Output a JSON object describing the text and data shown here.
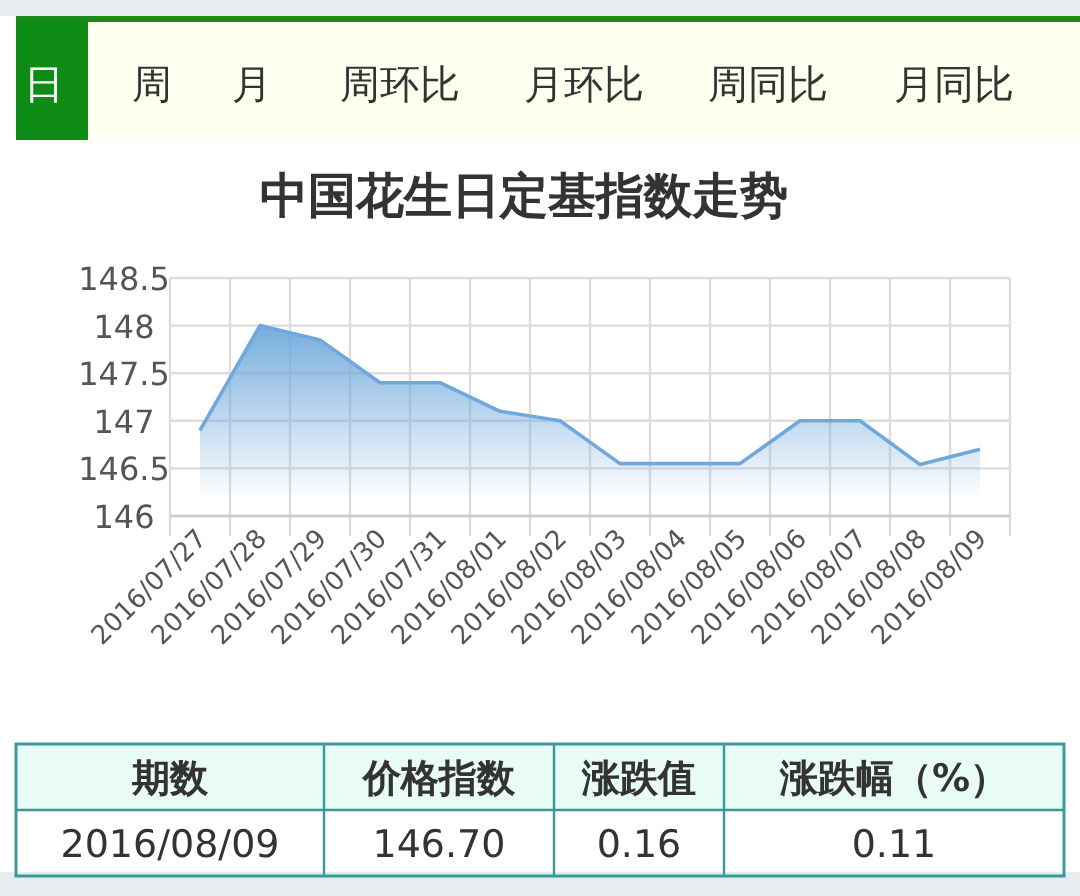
{
  "chart_data": [
    {
      "type": "other",
      "annotations": [
        "日",
        "周",
        "月",
        "周环比",
        "月环比",
        "周同比",
        "月同比"
      ]
    },
    {
      "type": "area",
      "title": "中国花生日定基指数走势",
      "categories": [
        "2016/07/27",
        "2016/07/28",
        "2016/07/29",
        "2016/07/30",
        "2016/07/31",
        "2016/08/01",
        "2016/08/02",
        "2016/08/03",
        "2016/08/04",
        "2016/08/05",
        "2016/08/06",
        "2016/08/07",
        "2016/08/08",
        "2016/08/09"
      ],
      "series": [
        {
          "color": "#6fa8dc",
          "values": [
            146.9,
            148.0,
            147.85,
            147.4,
            147.4,
            147.1,
            147.0,
            146.55,
            146.55,
            146.55,
            147.0,
            147.0,
            146.54,
            146.7
          ]
        }
      ],
      "ylim": [
        146,
        148.5
      ],
      "yticks": [
        146,
        146.5,
        147,
        147.5,
        148,
        148.5
      ],
      "grid": true
    },
    {
      "type": "other",
      "annotations": [
        "期数",
        "价格指数",
        "涨跌值",
        "涨跌幅（%）",
        "2016/08/09",
        "146.70",
        "0.16",
        "0.11"
      ]
    }
  ]
}
